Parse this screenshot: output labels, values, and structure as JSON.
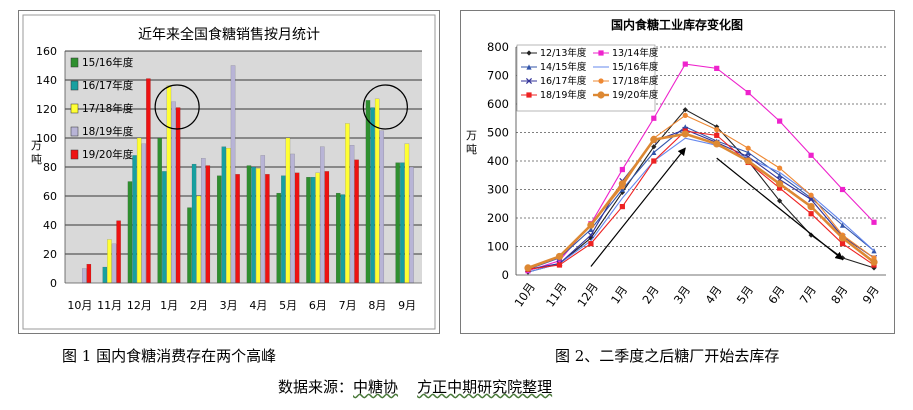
{
  "charts": {
    "left": {
      "chart_data": {
        "type": "bar",
        "title": "近年来全国食糖销售按月统计",
        "ylabel": "万吨",
        "xlabel": "",
        "ylim": [
          0,
          160
        ],
        "yticks": [
          0,
          20,
          40,
          60,
          80,
          100,
          120,
          140,
          160
        ],
        "grid": true,
        "legend_position": "left-inside",
        "categories": [
          "10月",
          "11月",
          "12月",
          "1月",
          "2月",
          "3月",
          "4月",
          "5月",
          "6月",
          "7月",
          "8月",
          "9月"
        ],
        "series": [
          {
            "name": "15/16年度",
            "color": "#2f8f2f",
            "values": [
              null,
              null,
              70,
              100,
              52,
              74,
              81,
              62,
              73,
              62,
              126,
              83
            ]
          },
          {
            "name": "16/17年度",
            "color": "#17a0a0",
            "values": [
              null,
              11,
              88,
              77,
              82,
              94,
              80,
              74,
              73,
              61,
              121,
              83
            ]
          },
          {
            "name": "17/18年度",
            "color": "#ffff33",
            "values": [
              null,
              30,
              100,
              136,
              60,
              93,
              79,
              100,
              76,
              110,
              127,
              96
            ]
          },
          {
            "name": "18/19年度",
            "color": "#b8b4d6",
            "values": [
              10,
              27,
              96,
              125,
              86,
              150,
              88,
              89,
              94,
              95,
              105,
              80
            ]
          },
          {
            "name": "19/20年度",
            "color": "#ee1111",
            "values": [
              13,
              43,
              141,
              121,
              81,
              75,
              75,
              76,
              77,
              85,
              null,
              null
            ]
          }
        ],
        "annotations": [
          {
            "type": "circle",
            "around_category": "1月"
          },
          {
            "type": "circle",
            "around_category": "8月"
          }
        ]
      }
    },
    "right": {
      "chart_data": {
        "type": "line",
        "title": "国内食糖工业库存变化图",
        "ylabel": "万吨",
        "xlabel": "",
        "ylim": [
          0,
          800
        ],
        "yticks": [
          0,
          100,
          200,
          300,
          400,
          500,
          600,
          700,
          800
        ],
        "grid": true,
        "legend_position": "top-left-inside",
        "categories": [
          "10月",
          "11月",
          "12月",
          "1月",
          "2月",
          "3月",
          "4月",
          "5月",
          "6月",
          "7月",
          "8月",
          "9月"
        ],
        "series": [
          {
            "name": "12/13年度",
            "color": "#222222",
            "marker": "diamond",
            "values": [
              10,
              40,
              130,
              290,
              450,
              580,
              520,
              400,
              260,
              140,
              60,
              25
            ]
          },
          {
            "name": "13/14年度",
            "color": "#ee22cc",
            "marker": "square",
            "values": [
              15,
              50,
              180,
              370,
              550,
              740,
              725,
              640,
              540,
              420,
              300,
              185
            ]
          },
          {
            "name": "14/15年度",
            "color": "#3355aa",
            "marker": "triangle",
            "values": [
              20,
              60,
              160,
              300,
              430,
              520,
              470,
              430,
              350,
              270,
              175,
              85
            ]
          },
          {
            "name": "15/16年度",
            "color": "#6688ee",
            "marker": "none",
            "values": [
              10,
              40,
              120,
              270,
              400,
              480,
              455,
              410,
              360,
              280,
              185,
              85
            ]
          },
          {
            "name": "16/17年度",
            "color": "#333399",
            "marker": "x",
            "values": [
              20,
              40,
              140,
              330,
              470,
              510,
              465,
              415,
              335,
              265,
              135,
              60
            ]
          },
          {
            "name": "17/18年度",
            "color": "#ee8833",
            "marker": "circle",
            "values": [
              20,
              65,
              175,
              310,
              480,
              560,
              510,
              445,
              375,
              280,
              140,
              60
            ]
          },
          {
            "name": "18/19年度",
            "color": "#ee2222",
            "marker": "square",
            "values": [
              20,
              35,
              110,
              240,
              400,
              505,
              490,
              395,
              305,
              215,
              110,
              35
            ]
          },
          {
            "name": "19/20年度",
            "color": "#dd8833",
            "marker": "circle",
            "values": [
              25,
              65,
              175,
              320,
              475,
              495,
              460,
              400,
              320,
              240,
              130,
              45
            ]
          }
        ],
        "annotations": [
          {
            "type": "arrow",
            "from": {
              "x": "12月",
              "y": 30
            },
            "to": {
              "x": "3月",
              "y": 445
            }
          },
          {
            "type": "arrow",
            "from": {
              "x": "4月",
              "y": 410
            },
            "to": {
              "x": "8月",
              "y": 55
            }
          }
        ]
      }
    }
  },
  "captions": {
    "left": "图 1  国内食糖消费存在两个高峰",
    "right": "图 2、二季度之后糖厂开始去库存"
  },
  "source": {
    "prefix": "数据来源：",
    "org1": "中糖协",
    "org2": "方正中期研究院整理"
  }
}
